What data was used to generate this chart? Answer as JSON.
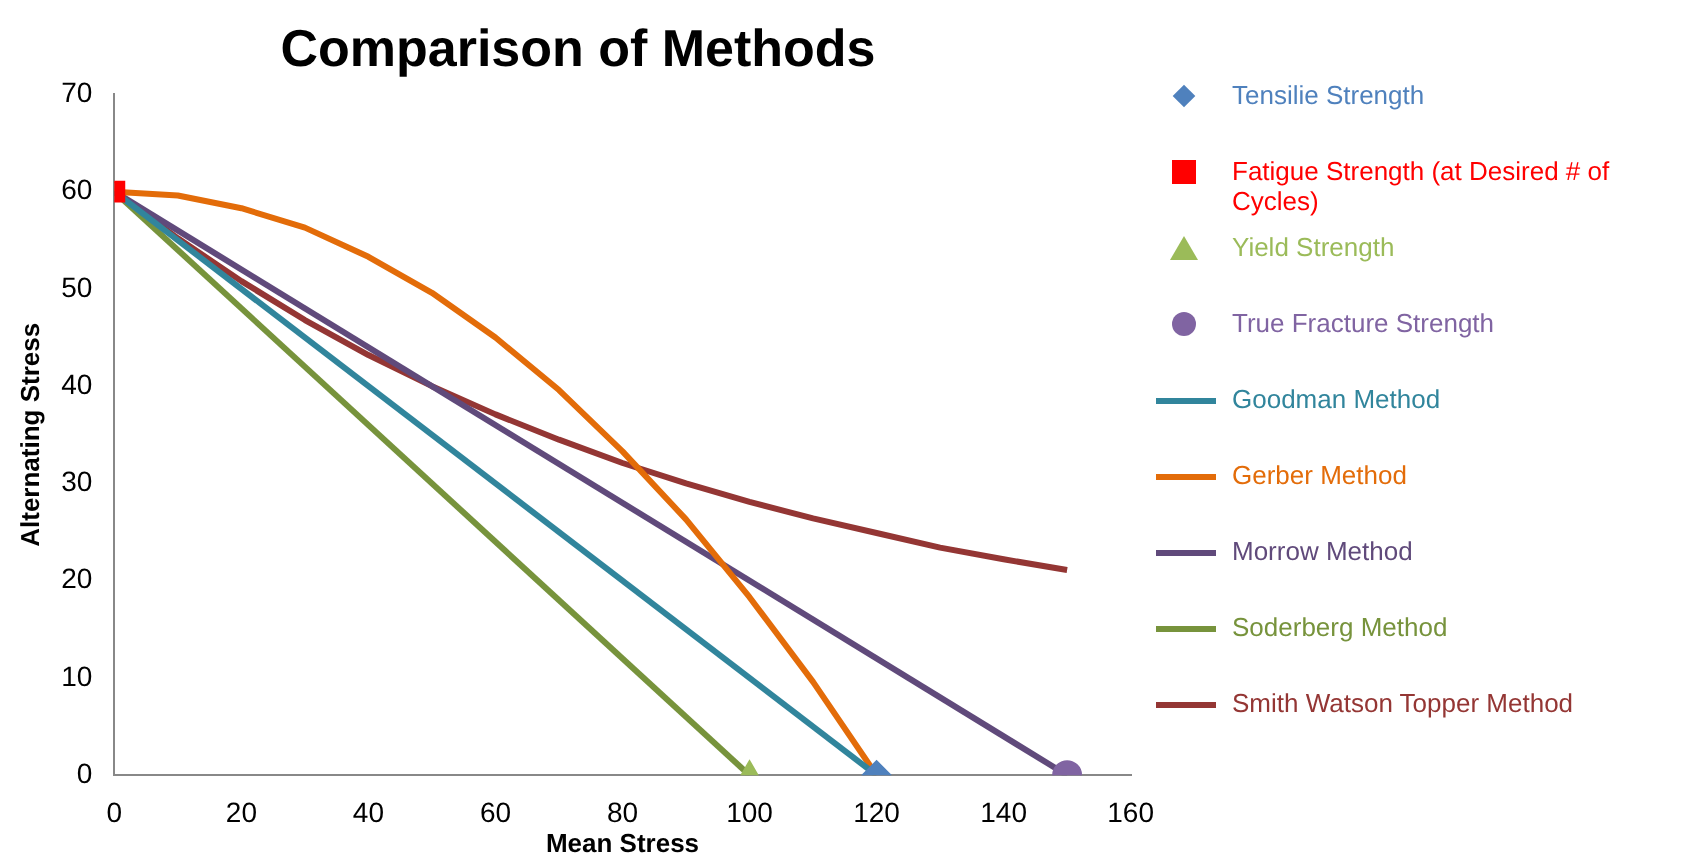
{
  "chart_data": {
    "type": "line",
    "title": "Comparison of Methods",
    "xlabel": "Mean Stress",
    "ylabel": "Alternating Stress",
    "xlim": [
      0,
      160
    ],
    "xticks": [
      0,
      20,
      40,
      60,
      80,
      100,
      120,
      140,
      160
    ],
    "ylim": [
      0,
      70
    ],
    "yticks": [
      0,
      10,
      20,
      30,
      40,
      50,
      60,
      70
    ],
    "grid": false,
    "legend": "right",
    "line_style": "solid",
    "series": [
      {
        "name": "Tensilie Strength",
        "type": "scatter",
        "marker": "diamond",
        "color": "#4f81bd",
        "x": [
          120
        ],
        "values": [
          0
        ]
      },
      {
        "name": "Fatigue Strength (at Desired # of Cycles)",
        "type": "scatter",
        "marker": "square",
        "color": "#ff0000",
        "x": [
          0
        ],
        "values": [
          60
        ]
      },
      {
        "name": "Yield Strength",
        "type": "scatter",
        "marker": "triangle",
        "color": "#9bbb59",
        "x": [
          100
        ],
        "values": [
          0
        ]
      },
      {
        "name": "True Fracture Strength",
        "type": "scatter",
        "marker": "circle",
        "color": "#8064a2",
        "x": [
          150
        ],
        "values": [
          0
        ]
      },
      {
        "name": "Goodman Method",
        "type": "line",
        "marker": "none",
        "color": "#31859c",
        "x": [
          0,
          120
        ],
        "values": [
          60,
          0
        ]
      },
      {
        "name": "Gerber Method",
        "type": "line",
        "marker": "none",
        "color": "#e36c09",
        "x": [
          0,
          10,
          20,
          30,
          40,
          50,
          60,
          70,
          80,
          90,
          100,
          110,
          120
        ],
        "values": [
          60,
          59.6,
          58.3,
          56.3,
          53.3,
          49.6,
          45,
          39.6,
          33.3,
          26.3,
          18.3,
          9.6,
          0
        ]
      },
      {
        "name": "Morrow Method",
        "type": "line",
        "marker": "none",
        "color": "#604a7b",
        "x": [
          0,
          150
        ],
        "values": [
          60,
          0
        ]
      },
      {
        "name": "Soderberg Method",
        "type": "line",
        "marker": "none",
        "color": "#77933c",
        "x": [
          0,
          100
        ],
        "values": [
          60,
          0
        ]
      },
      {
        "name": "Smith Watson Topper Method",
        "type": "line",
        "marker": "none",
        "color": "#943634",
        "x": [
          0,
          10,
          20,
          30,
          40,
          50,
          60,
          70,
          80,
          90,
          100,
          110,
          120,
          130,
          140,
          150
        ],
        "values": [
          60,
          55.2,
          50.8,
          46.8,
          43.2,
          40,
          37.1,
          34.5,
          32.1,
          30,
          28.1,
          26.4,
          24.9,
          23.4,
          22.2,
          21.1
        ]
      }
    ]
  }
}
